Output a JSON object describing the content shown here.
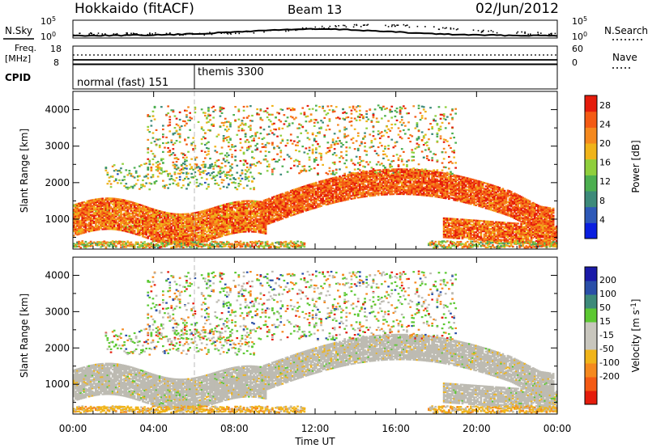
{
  "header": {
    "station": "Hokkaido (fitACF)",
    "beam": "Beam 13",
    "date": "02/Jun/2012"
  },
  "noise_panel": {
    "left_label": "N.Sky",
    "left_tick_top": "10^5",
    "left_tick_bottom": "10^0",
    "right_tick_top": "10^5",
    "right_tick_bottom": "10^0",
    "right_label": "N.Search"
  },
  "freq_panel": {
    "left_label_1": "Freq.",
    "left_label_2": "[MHz]",
    "left_tick_top": "18",
    "left_tick_bottom": "8",
    "right_tick_top": "60",
    "right_tick_bottom": "0",
    "right_label": "Nave"
  },
  "cpid_panel": {
    "label": "CPID",
    "modes": [
      {
        "name": "normal (fast) 151",
        "start_hour": 0
      },
      {
        "name": "themis 3300",
        "start_hour": 6
      }
    ]
  },
  "colors": {
    "power": [
      "#0a1fe0",
      "#2e59b8",
      "#3d8a7a",
      "#4caf50",
      "#8fcf3c",
      "#f0b41a",
      "#f5891e",
      "#f45a14",
      "#e51c0c"
    ],
    "velocity": [
      "#e51c0c",
      "#f45a14",
      "#f5891e",
      "#f0b41a",
      "#c8c6bd",
      "#c8c6bd",
      "#5cc832",
      "#3d8a7a",
      "#2a4fa8",
      "#1a1aa8"
    ],
    "ground_scatter": "#bdbbb2"
  },
  "chart_data": [
    {
      "type": "heatmap",
      "title": "",
      "ylabel": "Slant Range [km]",
      "xlabel": "",
      "xlim": [
        0,
        24
      ],
      "ylim": [
        180,
        4500
      ],
      "yticks": [
        1000,
        2000,
        3000,
        4000
      ],
      "ytick_labels": [
        "1000",
        "2000",
        "3000",
        "4000"
      ],
      "colorbar": {
        "label": "Power [dB]",
        "ticks": [
          4,
          8,
          12,
          16,
          20,
          24,
          28
        ],
        "tick_labels": [
          "4",
          "8",
          "12",
          "16",
          "20",
          "24",
          "28"
        ],
        "range": [
          0,
          30
        ]
      },
      "features": [
        {
          "desc": "low band",
          "t_start": 0,
          "t_end": 9,
          "range_km": [
            600,
            1500
          ],
          "power_db": 24
        },
        {
          "desc": "main arc",
          "t_start": 9,
          "t_end": 24,
          "range_km": [
            1200,
            2300
          ],
          "power_db": 28
        },
        {
          "desc": "late low echo",
          "t_start": 18,
          "t_end": 24,
          "range_km": [
            400,
            1100
          ],
          "power_db": 26
        },
        {
          "desc": "upper streaks",
          "t_start": 10,
          "t_end": 18,
          "range_km": [
            2500,
            4000
          ],
          "power_db": 20
        }
      ]
    },
    {
      "type": "heatmap",
      "title": "",
      "ylabel": "Slant Range [km]",
      "xlabel": "Time UT",
      "xlim": [
        0,
        24
      ],
      "ylim": [
        180,
        4500
      ],
      "xticks": [
        0,
        4,
        8,
        12,
        16,
        20,
        24
      ],
      "xtick_labels": [
        "00:00",
        "04:00",
        "08:00",
        "12:00",
        "16:00",
        "20:00",
        "00:00"
      ],
      "yticks": [
        1000,
        2000,
        3000,
        4000
      ],
      "ytick_labels": [
        "1000",
        "2000",
        "3000",
        "4000"
      ],
      "colorbar": {
        "label": "Velocity [m s^-1]",
        "tick_labels": [
          "200",
          "100",
          "50",
          "15",
          "-15",
          "-50",
          "-100",
          "-200"
        ]
      },
      "features": [
        {
          "desc": "ground scatter",
          "t_start": 0,
          "t_end": 24,
          "range_km": [
            600,
            2500
          ],
          "velocity_ms": 0
        },
        {
          "desc": "positive patch",
          "t_start": 15,
          "t_end": 19,
          "range_km": [
            2500,
            3500
          ],
          "velocity_ms": 30
        }
      ]
    }
  ]
}
